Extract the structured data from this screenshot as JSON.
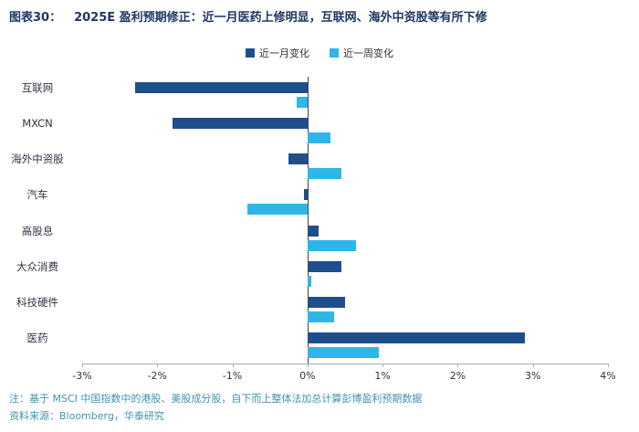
{
  "figure": {
    "label": "图表30：",
    "title": "2025E 盈利预期修正：近一月医药上修明显，互联网、海外中资股等有所下修"
  },
  "colors": {
    "month_bar": "#1F4E8C",
    "week_bar": "#2FB6E9",
    "title_text": "#1F3864",
    "footnote_text": "#4093B0"
  },
  "chart_data": {
    "type": "bar",
    "orientation": "horizontal",
    "title": "2025E 盈利预期修正",
    "categories": [
      "互联网",
      "MXCN",
      "海外中资股",
      "汽车",
      "高股息",
      "大众消费",
      "科技硬件",
      "医药"
    ],
    "series": [
      {
        "name": "近一月变化",
        "color": "#1F4E8C",
        "values": [
          -2.3,
          -1.8,
          -0.25,
          -0.05,
          0.15,
          0.45,
          0.5,
          2.9
        ]
      },
      {
        "name": "近一周变化",
        "color": "#2FB6E9",
        "values": [
          -0.15,
          0.3,
          0.45,
          -0.8,
          0.65,
          0.05,
          0.35,
          0.95
        ]
      }
    ],
    "xlim": [
      -3,
      4
    ],
    "xticks": [
      "-3%",
      "-2%",
      "-1%",
      "0%",
      "1%",
      "2%",
      "3%",
      "4%"
    ],
    "xtick_values": [
      -3,
      -2,
      -1,
      0,
      1,
      2,
      3,
      4
    ],
    "legend_position": "top",
    "grid": false
  },
  "footnotes": {
    "note": "注：基于 MSCI 中国指数中的港股、美股成分股，自下而上整体法加总计算彭博盈利预期数据",
    "source": "资料来源：Bloomberg，华泰研究"
  }
}
